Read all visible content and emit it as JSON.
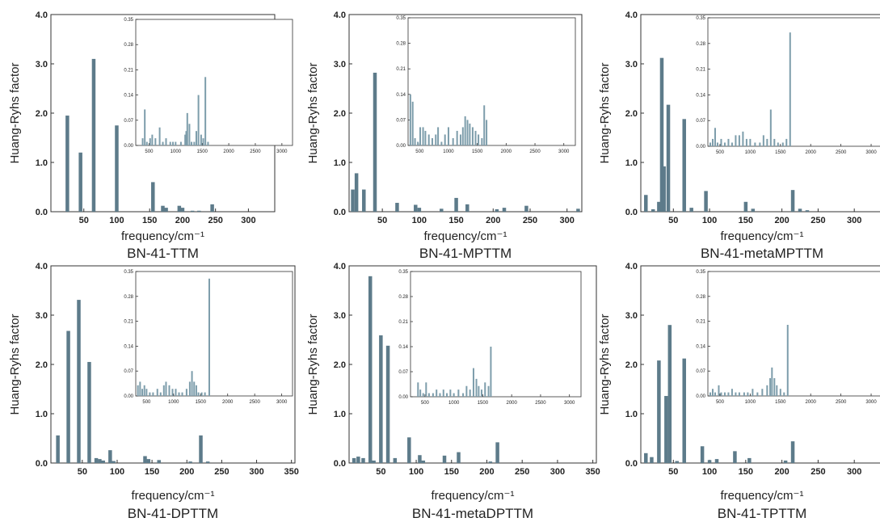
{
  "chart_data": [
    {
      "type": "bar",
      "title": "BN-41-TTM",
      "xlabel": "frequency/cm⁻¹",
      "ylabel": "Huang-Ryhs factor",
      "xlim": [
        0,
        340
      ],
      "ylim": [
        0,
        4.0
      ],
      "xticks": [
        "50",
        "100",
        "150",
        "200",
        "250",
        "300"
      ],
      "yticks": [
        "0.0",
        "1.0",
        "2.0",
        "3.0",
        "4.0"
      ],
      "x": [
        25,
        45,
        65,
        100,
        155,
        170,
        175,
        195,
        200,
        215,
        225,
        245
      ],
      "values": [
        1.95,
        1.2,
        3.1,
        1.75,
        0.6,
        0.12,
        0.08,
        0.12,
        0.08,
        0.02,
        0.02,
        0.15
      ],
      "inset": {
        "xlim": [
          250,
          3200
        ],
        "ylim": [
          0,
          0.35
        ],
        "xticks": [
          "500",
          "1000",
          "1500",
          "2000",
          "2500",
          "3000"
        ],
        "yticks": [
          "0.00",
          "0.07",
          "0.14",
          "0.21",
          "0.28",
          "0.35"
        ],
        "x": [
          380,
          420,
          460,
          520,
          560,
          620,
          700,
          760,
          820,
          900,
          950,
          1000,
          1100,
          1180,
          1200,
          1220,
          1260,
          1300,
          1350,
          1390,
          1430,
          1480,
          1520,
          1560,
          1610
        ],
        "values": [
          0.02,
          0.1,
          0.01,
          0.02,
          0.03,
          0.02,
          0.05,
          0.01,
          0.02,
          0.01,
          0.01,
          0.01,
          0.01,
          0.03,
          0.04,
          0.09,
          0.06,
          0.01,
          0.01,
          0.04,
          0.14,
          0.03,
          0.02,
          0.19,
          0.01
        ]
      }
    },
    {
      "type": "bar",
      "title": "BN-41-MPTTM",
      "xlabel": "frequency/cm⁻¹",
      "ylabel": "Huang-Ryhs factor",
      "xlim": [
        5,
        320
      ],
      "ylim": [
        0,
        4.0
      ],
      "xticks": [
        "50",
        "100",
        "150",
        "200",
        "250",
        "300"
      ],
      "yticks": [
        "0.0",
        "1.0",
        "2.0",
        "3.0",
        "4.0"
      ],
      "x": [
        10,
        15,
        25,
        40,
        70,
        95,
        100,
        130,
        150,
        165,
        205,
        215,
        245,
        315
      ],
      "values": [
        0.45,
        0.78,
        0.45,
        2.82,
        0.18,
        0.14,
        0.08,
        0.06,
        0.28,
        0.15,
        0.05,
        0.08,
        0.12,
        0.06
      ],
      "inset": {
        "xlim": [
          300,
          3200
        ],
        "ylim": [
          0,
          0.35
        ],
        "xticks": [
          "500",
          "1000",
          "1500",
          "2000",
          "2500",
          "3000"
        ],
        "yticks": [
          "0.00",
          "0.07",
          "0.14",
          "0.21",
          "0.28",
          "0.35"
        ],
        "x": [
          340,
          380,
          420,
          470,
          510,
          560,
          600,
          660,
          720,
          780,
          820,
          880,
          940,
          1000,
          1080,
          1150,
          1210,
          1250,
          1290,
          1330,
          1370,
          1420,
          1470,
          1520,
          1580,
          1620,
          1660
        ],
        "values": [
          0.14,
          0.12,
          0.02,
          0.01,
          0.05,
          0.05,
          0.04,
          0.03,
          0.02,
          0.03,
          0.05,
          0.01,
          0.03,
          0.05,
          0.02,
          0.04,
          0.03,
          0.05,
          0.08,
          0.07,
          0.06,
          0.05,
          0.04,
          0.03,
          0.02,
          0.11,
          0.07
        ]
      }
    },
    {
      "type": "bar",
      "title": "BN-41-metaMPTTM",
      "xlabel": "frequency/cm⁻¹",
      "ylabel": "Huang-Ryhs factor",
      "xlim": [
        5,
        340
      ],
      "ylim": [
        0,
        4.0
      ],
      "xticks": [
        "50",
        "100",
        "150",
        "200",
        "250",
        "300"
      ],
      "yticks": [
        "0.0",
        "1.0",
        "2.0",
        "3.0",
        "4.0"
      ],
      "x": [
        12,
        22,
        30,
        34,
        37,
        43,
        65,
        75,
        95,
        150,
        160,
        215,
        225,
        235
      ],
      "values": [
        0.34,
        0.05,
        0.2,
        3.12,
        0.92,
        2.17,
        1.88,
        0.08,
        0.42,
        0.2,
        0.06,
        0.44,
        0.06,
        0.03
      ],
      "inset": {
        "xlim": [
          300,
          3200
        ],
        "ylim": [
          0,
          0.35
        ],
        "xticks": [
          "500",
          "1000",
          "1500",
          "2000",
          "2500",
          "3000"
        ],
        "yticks": [
          "0.00",
          "0.07",
          "0.14",
          "0.21",
          "0.28",
          "0.35"
        ],
        "x": [
          340,
          380,
          420,
          460,
          520,
          580,
          640,
          700,
          760,
          820,
          880,
          940,
          1000,
          1080,
          1160,
          1220,
          1280,
          1340,
          1400,
          1460,
          1540,
          1600,
          1660
        ],
        "values": [
          0.01,
          0.02,
          0.05,
          0.01,
          0.02,
          0.01,
          0.02,
          0.01,
          0.03,
          0.03,
          0.04,
          0.02,
          0.02,
          0.01,
          0.01,
          0.03,
          0.02,
          0.1,
          0.02,
          0.01,
          0.01,
          0.02,
          0.31
        ]
      }
    },
    {
      "type": "bar",
      "title": "BN-41-DPTTM",
      "xlabel": "frequency/cm⁻¹",
      "ylabel": "Huang-Ryhs factor",
      "xlim": [
        5,
        355
      ],
      "ylim": [
        0,
        4.0
      ],
      "xticks": [
        "50",
        "100",
        "150",
        "200",
        "250",
        "300",
        "350"
      ],
      "yticks": [
        "0.0",
        "1.0",
        "2.0",
        "3.0",
        "4.0"
      ],
      "x": [
        15,
        30,
        45,
        60,
        70,
        75,
        80,
        90,
        95,
        140,
        145,
        160,
        205,
        220,
        230
      ],
      "values": [
        0.56,
        2.68,
        3.31,
        2.05,
        0.1,
        0.08,
        0.05,
        0.26,
        0.04,
        0.14,
        0.08,
        0.06,
        0.03,
        0.56,
        0.03
      ],
      "inset": {
        "xlim": [
          300,
          3200
        ],
        "ylim": [
          0,
          0.35
        ],
        "xticks": [
          "500",
          "1000",
          "1500",
          "2000",
          "2500",
          "3000"
        ],
        "yticks": [
          "0.00",
          "0.07",
          "0.14",
          "0.21",
          "0.28",
          "0.35"
        ],
        "x": [
          340,
          380,
          420,
          460,
          500,
          560,
          620,
          700,
          760,
          820,
          860,
          920,
          980,
          1040,
          1100,
          1160,
          1240,
          1300,
          1340,
          1380,
          1420,
          1460,
          1520,
          1580,
          1660
        ],
        "values": [
          0.03,
          0.04,
          0.02,
          0.03,
          0.02,
          0.01,
          0.01,
          0.02,
          0.01,
          0.03,
          0.04,
          0.03,
          0.02,
          0.02,
          0.01,
          0.01,
          0.02,
          0.04,
          0.07,
          0.04,
          0.03,
          0.01,
          0.01,
          0.01,
          0.33
        ]
      }
    },
    {
      "type": "bar",
      "title": "BN-41-metaDPTTM",
      "xlabel": "frequency/cm⁻¹",
      "ylabel": "Huang-Ryhs factor",
      "xlim": [
        5,
        355
      ],
      "ylim": [
        0,
        4.0
      ],
      "xticks": [
        "50",
        "100",
        "150",
        "200",
        "250",
        "300",
        "350"
      ],
      "yticks": [
        "0.0",
        "1.0",
        "2.0",
        "3.0",
        "4.0"
      ],
      "x": [
        12,
        18,
        25,
        35,
        40,
        50,
        60,
        70,
        90,
        105,
        110,
        140,
        160,
        205,
        215
      ],
      "values": [
        0.1,
        0.13,
        0.1,
        3.79,
        0.05,
        2.59,
        2.38,
        0.1,
        0.52,
        0.16,
        0.05,
        0.15,
        0.22,
        0.03,
        0.42
      ],
      "inset": {
        "xlim": [
          250,
          3200
        ],
        "ylim": [
          0,
          0.35
        ],
        "xticks": [
          "500",
          "1000",
          "1500",
          "2000",
          "2500",
          "3000"
        ],
        "yticks": [
          "0.00",
          "0.07",
          "0.14",
          "0.21",
          "0.28",
          "0.35"
        ],
        "x": [
          380,
          420,
          470,
          520,
          570,
          640,
          700,
          760,
          820,
          880,
          940,
          1000,
          1080,
          1160,
          1220,
          1280,
          1340,
          1390,
          1430,
          1480,
          1540,
          1600,
          1640
        ],
        "values": [
          0.04,
          0.02,
          0.01,
          0.04,
          0.01,
          0.01,
          0.02,
          0.01,
          0.02,
          0.01,
          0.02,
          0.01,
          0.02,
          0.01,
          0.03,
          0.02,
          0.08,
          0.05,
          0.03,
          0.02,
          0.04,
          0.03,
          0.14
        ]
      }
    },
    {
      "type": "bar",
      "title": "BN-41-TPTTM",
      "xlabel": "frequency/cm⁻¹",
      "ylabel": "Huang-Ryhs factor",
      "xlim": [
        5,
        340
      ],
      "ylim": [
        0,
        4.0
      ],
      "xticks": [
        "50",
        "100",
        "150",
        "200",
        "250",
        "300"
      ],
      "yticks": [
        "0.0",
        "1.0",
        "2.0",
        "3.0",
        "4.0"
      ],
      "x": [
        12,
        20,
        30,
        40,
        45,
        55,
        65,
        90,
        100,
        110,
        135,
        155,
        205,
        215
      ],
      "values": [
        0.2,
        0.12,
        2.08,
        1.36,
        2.8,
        0.04,
        2.12,
        0.34,
        0.06,
        0.08,
        0.24,
        0.1,
        0.05,
        0.44
      ],
      "inset": {
        "xlim": [
          300,
          3200
        ],
        "ylim": [
          0,
          0.35
        ],
        "xticks": [
          "500",
          "1000",
          "1500",
          "2000",
          "2500",
          "3000"
        ],
        "yticks": [
          "0.00",
          "0.07",
          "0.14",
          "0.21",
          "0.28",
          "0.35"
        ],
        "x": [
          340,
          380,
          420,
          480,
          520,
          580,
          640,
          700,
          760,
          820,
          900,
          960,
          1040,
          1120,
          1200,
          1280,
          1330,
          1360,
          1400,
          1440,
          1500,
          1560,
          1620
        ],
        "values": [
          0.01,
          0.02,
          0.01,
          0.03,
          0.01,
          0.01,
          0.01,
          0.02,
          0.01,
          0.01,
          0.01,
          0.01,
          0.02,
          0.01,
          0.02,
          0.03,
          0.05,
          0.08,
          0.05,
          0.03,
          0.02,
          0.01,
          0.2
        ]
      }
    }
  ]
}
